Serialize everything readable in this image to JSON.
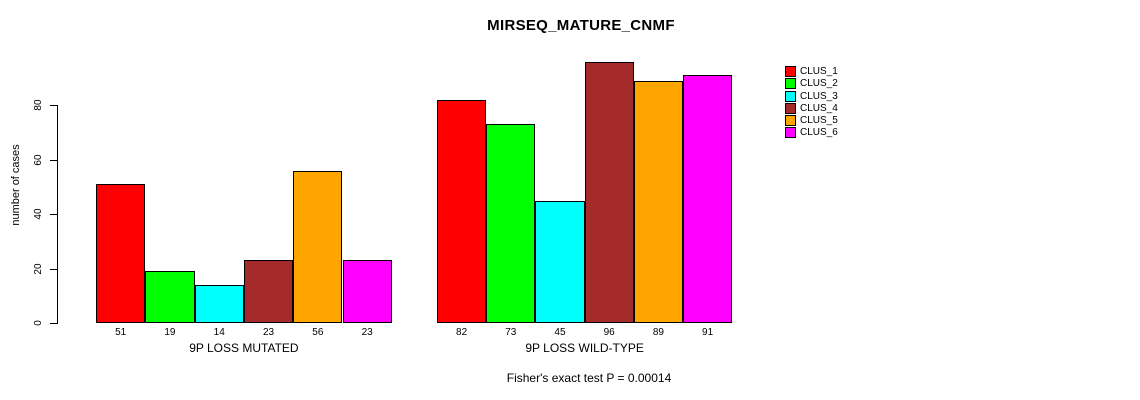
{
  "figure": {
    "background": "#FFFFFF",
    "text_color": "#000000"
  },
  "chart_data": {
    "type": "bar",
    "title": "MIRSEQ_MATURE_CNMF",
    "ylabel": "number of cases",
    "xlabel": "",
    "annotation": "Fisher's exact test P = 0.00014",
    "grid": false,
    "legend_position": "right-outside",
    "yticks": [
      0,
      20,
      40,
      60,
      80
    ],
    "ylim": [
      0,
      100
    ],
    "categories": [
      "9P LOSS MUTATED",
      "9P LOSS WILD-TYPE"
    ],
    "bar_value_labels_shown": true,
    "series": [
      {
        "name": "CLUS_1",
        "color": "#FF0000",
        "values": [
          51,
          82
        ]
      },
      {
        "name": "CLUS_2",
        "color": "#00FF00",
        "values": [
          19,
          73
        ]
      },
      {
        "name": "CLUS_3",
        "color": "#00FFFF",
        "values": [
          14,
          45
        ]
      },
      {
        "name": "CLUS_4",
        "color": "#A52A2A",
        "values": [
          23,
          96
        ]
      },
      {
        "name": "CLUS_5",
        "color": "#FFA500",
        "values": [
          56,
          89
        ]
      },
      {
        "name": "CLUS_6",
        "color": "#FF00FF",
        "values": [
          23,
          91
        ]
      }
    ]
  }
}
